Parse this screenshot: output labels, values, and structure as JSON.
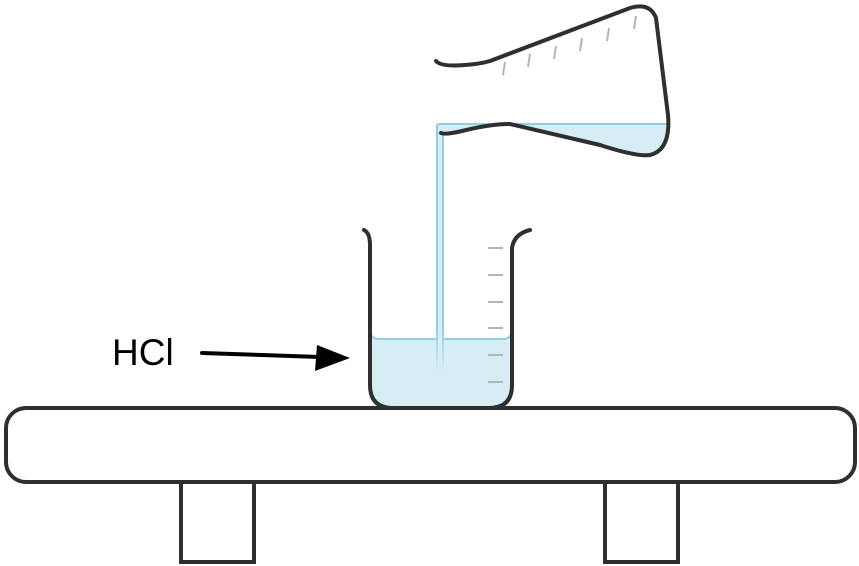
{
  "diagram": {
    "label": "HCl"
  },
  "colors": {
    "outline": "#2f2f2f",
    "liquid_fill": "#d6edf5",
    "liquid_edge": "#8ecfe2",
    "stream": "#8ecfe2",
    "graduation": "#b5b5b5",
    "arrow": "#000000",
    "background": "#ffffff"
  }
}
